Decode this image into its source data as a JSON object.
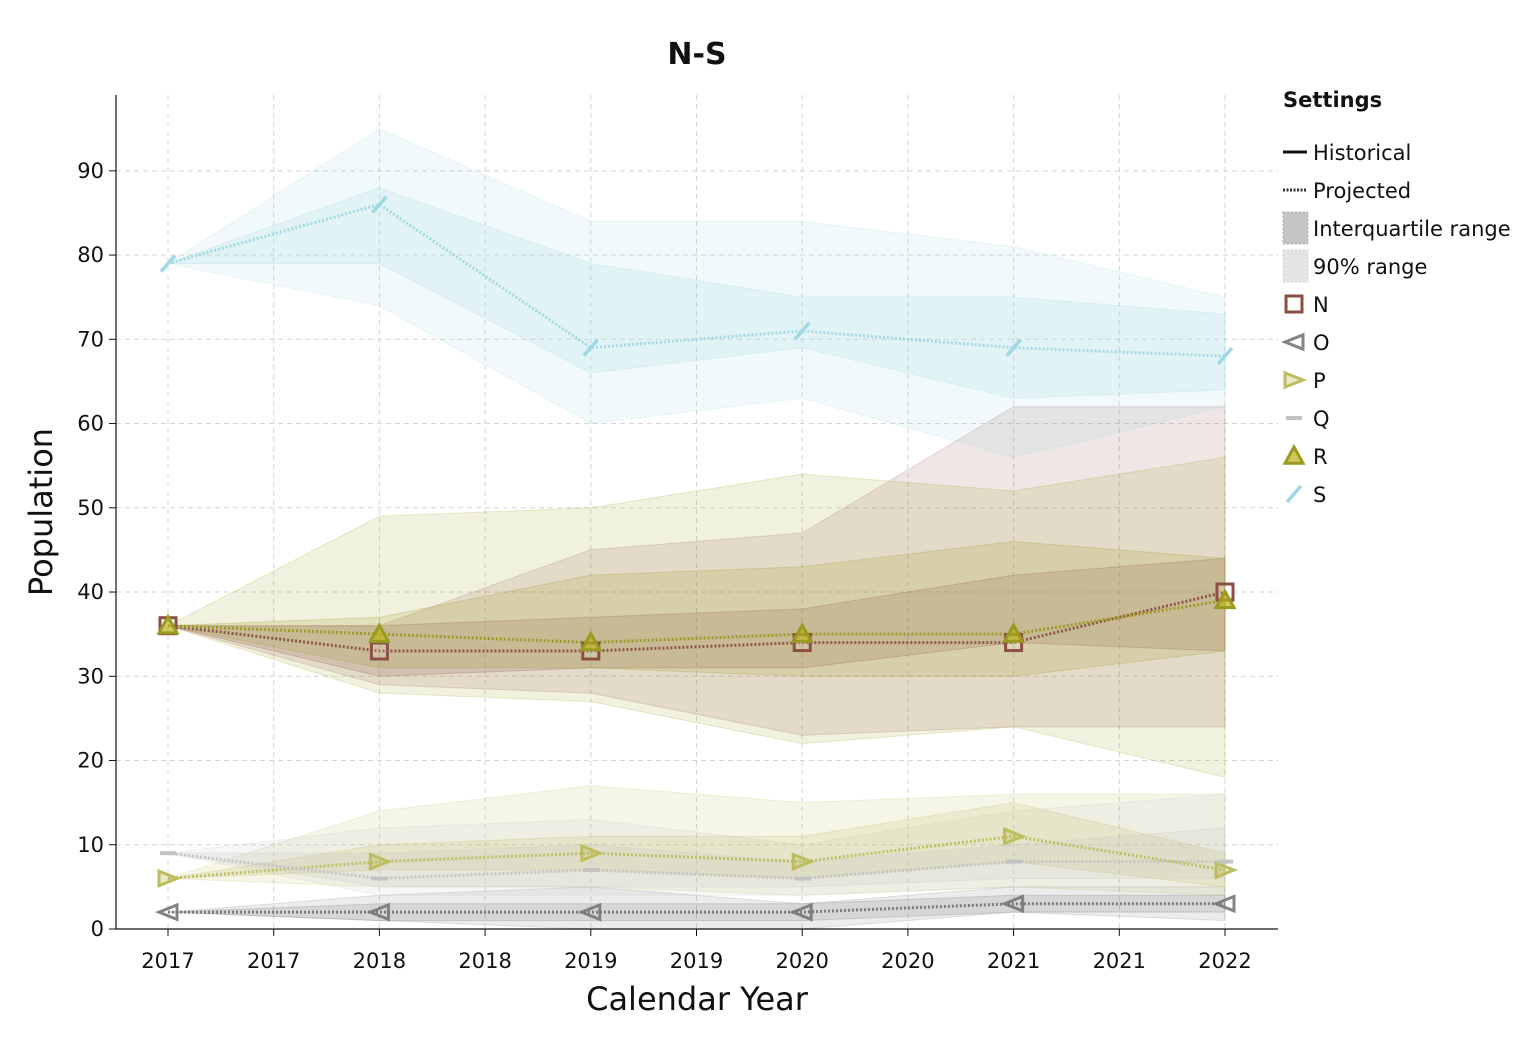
{
  "chart_data": {
    "type": "line",
    "title": "N-S",
    "xlabel": "Calendar Year",
    "ylabel": "Population",
    "x": [
      2017,
      2018,
      2019,
      2020,
      2021,
      2022
    ],
    "x_tick_labels": [
      "2017",
      "2017",
      "2018",
      "2018",
      "2019",
      "2019",
      "2020",
      "2020",
      "2021",
      "2021",
      "2022"
    ],
    "y_ticks": [
      0,
      10,
      20,
      30,
      40,
      50,
      60,
      70,
      80,
      90
    ],
    "ylim": [
      0,
      99
    ],
    "grid": true,
    "legend_position": "right",
    "legend": {
      "title": "Settings",
      "style_entries": [
        {
          "label": "Historical",
          "kind": "solid"
        },
        {
          "label": "Projected",
          "kind": "dotted"
        },
        {
          "label": "Interquartile range",
          "kind": "band-dark"
        },
        {
          "label": "90% range",
          "kind": "band-light"
        }
      ]
    },
    "series": [
      {
        "name": "N",
        "color": "#8b4f45",
        "marker": "square",
        "values": [
          36,
          33,
          33,
          34,
          34,
          40
        ],
        "iqr": [
          [
            36,
            36
          ],
          [
            30,
            36
          ],
          [
            31,
            37
          ],
          [
            31,
            38
          ],
          [
            34,
            42
          ],
          [
            33,
            44
          ]
        ],
        "p90": [
          [
            36,
            36
          ],
          [
            29,
            36
          ],
          [
            28,
            45
          ],
          [
            23,
            47
          ],
          [
            24,
            62
          ],
          [
            24,
            62
          ]
        ]
      },
      {
        "name": "O",
        "color": "#777777",
        "marker": "triangle-left",
        "values": [
          2,
          2,
          2,
          2,
          3,
          3
        ],
        "iqr": [
          [
            2,
            2
          ],
          [
            1,
            3
          ],
          [
            1,
            3
          ],
          [
            1,
            3
          ],
          [
            2,
            4
          ],
          [
            2,
            4
          ]
        ],
        "p90": [
          [
            2,
            2
          ],
          [
            1,
            4
          ],
          [
            0,
            5
          ],
          [
            0,
            3
          ],
          [
            2,
            5
          ],
          [
            1,
            5
          ]
        ]
      },
      {
        "name": "P",
        "color": "#bdbd5f",
        "marker": "triangle-right",
        "values": [
          6,
          8,
          9,
          8,
          11,
          7
        ],
        "iqr": [
          [
            6,
            6
          ],
          [
            7,
            10
          ],
          [
            7,
            11
          ],
          [
            6,
            11
          ],
          [
            8,
            15
          ],
          [
            5,
            9
          ]
        ],
        "p90": [
          [
            6,
            6
          ],
          [
            5,
            14
          ],
          [
            5,
            17
          ],
          [
            4,
            15
          ],
          [
            5,
            16
          ],
          [
            4,
            16
          ]
        ]
      },
      {
        "name": "Q",
        "color": "#c2c2c2",
        "marker": "dash",
        "values": [
          9,
          6,
          7,
          6,
          8,
          8
        ],
        "iqr": [
          [
            9,
            9
          ],
          [
            5,
            9
          ],
          [
            5,
            10
          ],
          [
            5,
            8
          ],
          [
            6,
            10
          ],
          [
            6,
            12
          ]
        ],
        "p90": [
          [
            9,
            9
          ],
          [
            4,
            12
          ],
          [
            4,
            13
          ],
          [
            4,
            10
          ],
          [
            5,
            14
          ],
          [
            5,
            16
          ]
        ]
      },
      {
        "name": "R",
        "color": "#9a9a1f",
        "marker": "triangle-up",
        "values": [
          36,
          35,
          34,
          35,
          35,
          39
        ],
        "iqr": [
          [
            36,
            36
          ],
          [
            31,
            37
          ],
          [
            31,
            42
          ],
          [
            30,
            43
          ],
          [
            30,
            46
          ],
          [
            33,
            44
          ]
        ],
        "p90": [
          [
            36,
            36
          ],
          [
            28,
            49
          ],
          [
            27,
            50
          ],
          [
            22,
            54
          ],
          [
            24,
            52
          ],
          [
            18,
            56
          ]
        ]
      },
      {
        "name": "S",
        "color": "#9ed8e3",
        "marker": "slash",
        "values": [
          79,
          86,
          69,
          71,
          69,
          68
        ],
        "iqr": [
          [
            79,
            79
          ],
          [
            79,
            88
          ],
          [
            66,
            79
          ],
          [
            69,
            75
          ],
          [
            63,
            75
          ],
          [
            64,
            73
          ]
        ],
        "p90": [
          [
            79,
            79
          ],
          [
            74,
            95
          ],
          [
            60,
            84
          ],
          [
            63,
            84
          ],
          [
            56,
            81
          ],
          [
            62,
            75
          ]
        ]
      }
    ]
  }
}
